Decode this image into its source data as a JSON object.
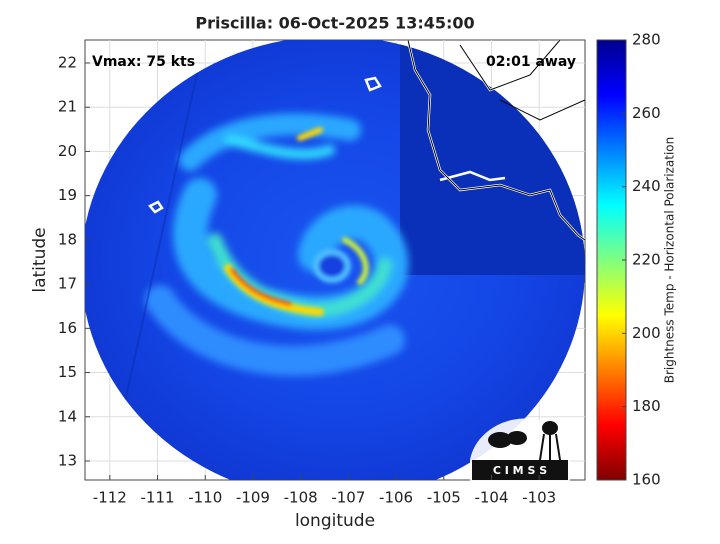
{
  "map": {
    "title": "Priscilla: 06-Oct-2025 13:45:00",
    "annotations": {
      "intensity": "Vmax: 75 kts",
      "time_away": "02:01 away"
    },
    "xlabel": "longitude",
    "ylabel": "latitude",
    "xlim": [
      -112.52,
      -102.04
    ],
    "ylim": [
      12.57,
      22.52
    ],
    "xticks": [
      -112,
      -111,
      -110,
      -109,
      -108,
      -107,
      -106,
      -105,
      -104,
      -103
    ],
    "yticks": [
      13,
      14,
      15,
      16,
      17,
      18,
      19,
      20,
      21,
      22
    ],
    "grid": true,
    "colorbar": {
      "label": "Brightness Temp - Horizontal Polarization",
      "lim": [
        160,
        280
      ],
      "ticks": [
        160,
        180,
        200,
        220,
        240,
        260,
        280
      ],
      "colormap": [
        "#800000",
        "#ff0000",
        "#ff8000",
        "#ffff00",
        "#80ff80",
        "#00ffff",
        "#0080ff",
        "#0000ff",
        "#00008f"
      ]
    },
    "logo": "C I M S S"
  }
}
